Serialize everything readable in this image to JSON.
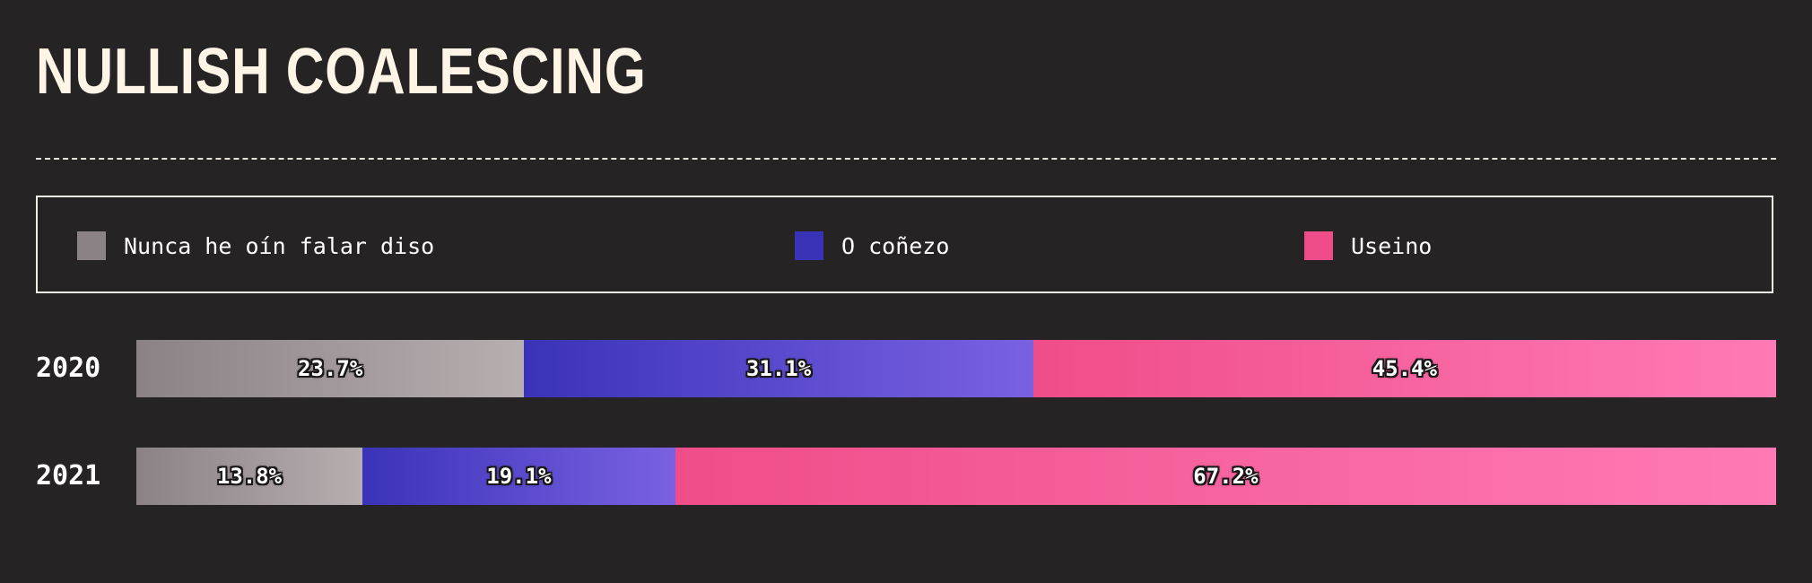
{
  "title": "NULLISH COALESCING",
  "legend": [
    {
      "label": "Nunca he oín falar diso",
      "color": "#8b8286"
    },
    {
      "label": "O coñezo",
      "color": "#3a33b8"
    },
    {
      "label": "Useino",
      "color": "#ef4d89"
    }
  ],
  "chart_data": {
    "type": "bar",
    "orientation": "horizontal",
    "stacked": true,
    "normalized": true,
    "categories": [
      "2020",
      "2021"
    ],
    "series": [
      {
        "name": "Nunca he oín falar diso",
        "values": [
          23.7,
          13.8
        ],
        "labels": [
          "23.7%",
          "13.8%"
        ],
        "color_from": "#8b8286",
        "color_to": "#b7aeb0"
      },
      {
        "name": "O coñezo",
        "values": [
          31.1,
          19.1
        ],
        "labels": [
          "31.1%",
          "19.1%"
        ],
        "color_from": "#3a33b8",
        "color_to": "#7a61e2"
      },
      {
        "name": "Useino",
        "values": [
          45.4,
          67.2
        ],
        "labels": [
          "45.4%",
          "67.2%"
        ],
        "color_from": "#ef4d89",
        "color_to": "#ff7ab5"
      }
    ],
    "legend_position": "top",
    "grid": false
  }
}
